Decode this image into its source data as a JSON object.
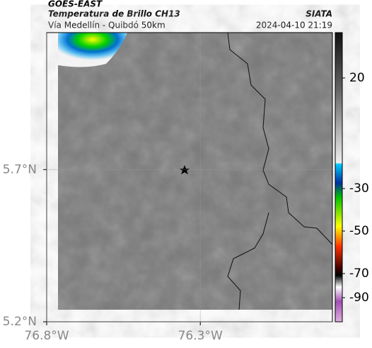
{
  "header": {
    "source": "GOES-EAST",
    "product": "Temperatura de Brillo CH13",
    "route": "Vía Medellín - Quibdó 50km",
    "agency": "SIATA",
    "datetime": "2024-04-10 21:19"
  },
  "map": {
    "xlim": [
      -76.8,
      -75.87
    ],
    "ylim": [
      5.2,
      6.15
    ],
    "xticks": [
      {
        "value": -76.8,
        "label": "76.8°W"
      },
      {
        "value": -76.3,
        "label": "76.3°W"
      }
    ],
    "yticks": [
      {
        "value": 5.2,
        "label": "5.2°N"
      },
      {
        "value": 5.7,
        "label": "5.7°N"
      }
    ]
  },
  "colorbar": {
    "ticks": [
      20,
      -30,
      -50,
      -70,
      -90
    ]
  }
}
